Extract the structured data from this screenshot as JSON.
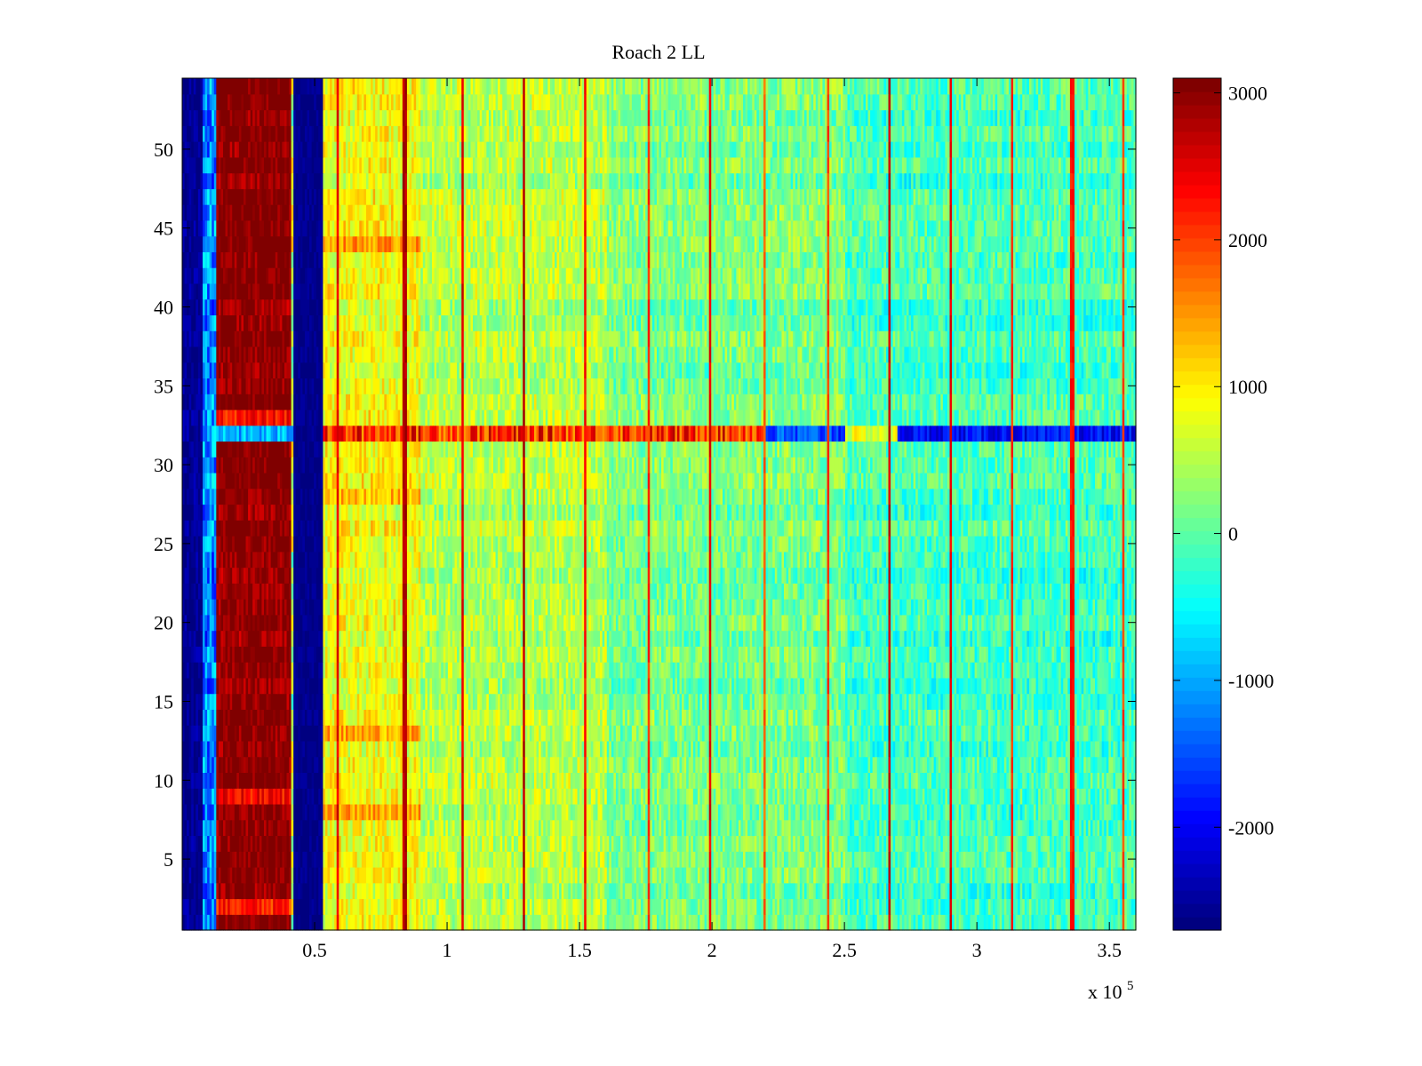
{
  "chart_data": {
    "type": "heatmap",
    "title": "Roach 2 LL",
    "xlabel": "",
    "ylabel": "",
    "x_multiplier_label": {
      "base": "x 10",
      "exponent": "5"
    },
    "xlim": [
      0,
      3.6
    ],
    "ylim": [
      0.5,
      54.5
    ],
    "xticks": [
      0.5,
      1,
      1.5,
      2,
      2.5,
      3,
      3.5
    ],
    "xtick_labels": [
      "0.5",
      "1",
      "1.5",
      "2",
      "2.5",
      "3",
      "3.5"
    ],
    "yticks": [
      5,
      10,
      15,
      20,
      25,
      30,
      35,
      40,
      45,
      50
    ],
    "ytick_labels": [
      "5",
      "10",
      "15",
      "20",
      "25",
      "30",
      "35",
      "40",
      "45",
      "50"
    ],
    "rows": 54,
    "colormap": "jet",
    "clim": [
      -2700,
      3100
    ],
    "colorbar": {
      "ticks": [
        -2000,
        -1000,
        0,
        1000,
        2000,
        3000
      ],
      "tick_labels": [
        "-2000",
        "-1000",
        "0",
        "1000",
        "2000",
        "3000"
      ],
      "levels": 64
    },
    "x_region_profile": [
      {
        "x0": 0.0,
        "x1": 0.08,
        "value": -2600,
        "spread": 250
      },
      {
        "x0": 0.08,
        "x1": 0.13,
        "value": -1200,
        "spread": 700
      },
      {
        "x0": 0.13,
        "x1": 0.41,
        "value": 3050,
        "spread": 350
      },
      {
        "x0": 0.41,
        "x1": 0.42,
        "value": 500,
        "spread": 800
      },
      {
        "x0": 0.42,
        "x1": 0.53,
        "value": -2650,
        "spread": 150
      },
      {
        "x0": 0.53,
        "x1": 0.9,
        "value": 850,
        "spread": 450
      },
      {
        "x0": 0.9,
        "x1": 1.6,
        "value": 500,
        "spread": 450
      },
      {
        "x0": 1.6,
        "x1": 2.5,
        "value": 150,
        "spread": 450
      },
      {
        "x0": 2.5,
        "x1": 3.6,
        "value": -150,
        "spread": 450
      }
    ],
    "row_overrides": [
      {
        "row": 32,
        "x0": 0.53,
        "x1": 2.2,
        "value": 2000,
        "spread": 700
      },
      {
        "row": 32,
        "x0": 2.2,
        "x1": 2.5,
        "value": -1700,
        "spread": 500
      },
      {
        "row": 32,
        "x0": 2.5,
        "x1": 2.7,
        "value": 600,
        "spread": 400
      },
      {
        "row": 32,
        "x0": 2.7,
        "x1": 3.6,
        "value": -2100,
        "spread": 400
      },
      {
        "row": 32,
        "x0": 0.08,
        "x1": 0.42,
        "value": -1100,
        "spread": 500
      },
      {
        "row": 33,
        "x0": 0.13,
        "x1": 0.41,
        "value": 2200,
        "spread": 400
      },
      {
        "row": 9,
        "x0": 0.13,
        "x1": 0.41,
        "value": 2300,
        "spread": 400
      },
      {
        "row": 2,
        "x0": 0.13,
        "x1": 0.41,
        "value": 2200,
        "spread": 400
      },
      {
        "row": 8,
        "x0": 0.53,
        "x1": 0.9,
        "value": 1500,
        "spread": 400
      },
      {
        "row": 13,
        "x0": 0.53,
        "x1": 0.9,
        "value": 1400,
        "spread": 400
      },
      {
        "row": 44,
        "x0": 0.53,
        "x1": 0.9,
        "value": 1400,
        "spread": 400
      },
      {
        "row": 28,
        "x0": 0.53,
        "x1": 0.9,
        "value": 1300,
        "spread": 400
      }
    ],
    "vertical_lines": [
      {
        "x": 0.59,
        "value": 2700
      },
      {
        "x": 0.84,
        "value": 3000
      },
      {
        "x": 1.06,
        "value": 2700
      },
      {
        "x": 1.29,
        "value": 3000
      },
      {
        "x": 1.52,
        "value": 2500
      },
      {
        "x": 1.76,
        "value": 2300
      },
      {
        "x": 1.99,
        "value": 2700
      },
      {
        "x": 2.2,
        "value": 2000
      },
      {
        "x": 2.44,
        "value": 2200
      },
      {
        "x": 2.67,
        "value": 2900
      },
      {
        "x": 2.9,
        "value": 2700
      },
      {
        "x": 3.13,
        "value": 2300
      },
      {
        "x": 3.36,
        "value": 2500
      },
      {
        "x": 3.55,
        "value": 2200
      }
    ]
  }
}
